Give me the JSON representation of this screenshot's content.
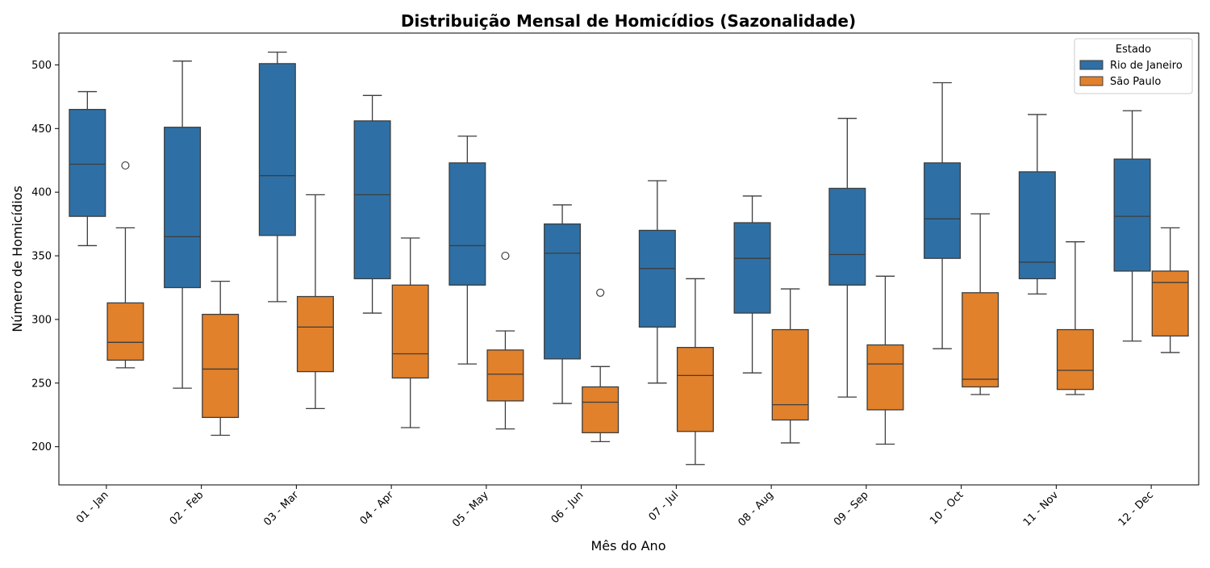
{
  "chart_data": {
    "type": "box",
    "title": "Distribuição Mensal de Homicídios (Sazonalidade)",
    "xlabel": "Mês do Ano",
    "ylabel": "Número de Homicídios",
    "ylim": [
      170,
      525
    ],
    "yticks": [
      200,
      250,
      300,
      350,
      400,
      450,
      500
    ],
    "grid": false,
    "legend": {
      "title": "Estado",
      "placement": "top-right"
    },
    "categories": [
      "01 - Jan",
      "02 - Feb",
      "03 - Mar",
      "04 - Apr",
      "05 - May",
      "06 - Jun",
      "07 - Jul",
      "08 - Aug",
      "09 - Sep",
      "10 - Oct",
      "11 - Nov",
      "12 - Dec"
    ],
    "series": [
      {
        "name": "Rio de Janeiro",
        "color": "#2e70a5",
        "boxes": [
          {
            "whislo": 358,
            "q1": 381,
            "med": 422,
            "q3": 465,
            "whishi": 479,
            "fliers": []
          },
          {
            "whislo": 246,
            "q1": 325,
            "med": 365,
            "q3": 451,
            "whishi": 503,
            "fliers": []
          },
          {
            "whislo": 314,
            "q1": 366,
            "med": 413,
            "q3": 501,
            "whishi": 510,
            "fliers": []
          },
          {
            "whislo": 305,
            "q1": 332,
            "med": 398,
            "q3": 456,
            "whishi": 476,
            "fliers": []
          },
          {
            "whislo": 265,
            "q1": 327,
            "med": 358,
            "q3": 423,
            "whishi": 444,
            "fliers": []
          },
          {
            "whislo": 234,
            "q1": 269,
            "med": 352,
            "q3": 375,
            "whishi": 390,
            "fliers": []
          },
          {
            "whislo": 250,
            "q1": 294,
            "med": 340,
            "q3": 370,
            "whishi": 409,
            "fliers": []
          },
          {
            "whislo": 258,
            "q1": 305,
            "med": 348,
            "q3": 376,
            "whishi": 397,
            "fliers": []
          },
          {
            "whislo": 239,
            "q1": 327,
            "med": 351,
            "q3": 403,
            "whishi": 458,
            "fliers": []
          },
          {
            "whislo": 277,
            "q1": 348,
            "med": 379,
            "q3": 423,
            "whishi": 486,
            "fliers": []
          },
          {
            "whislo": 320,
            "q1": 332,
            "med": 345,
            "q3": 416,
            "whishi": 461,
            "fliers": []
          },
          {
            "whislo": 283,
            "q1": 338,
            "med": 381,
            "q3": 426,
            "whishi": 464,
            "fliers": []
          }
        ]
      },
      {
        "name": "São Paulo",
        "color": "#e1812c",
        "boxes": [
          {
            "whislo": 262,
            "q1": 268,
            "med": 282,
            "q3": 313,
            "whishi": 372,
            "fliers": [
              421
            ]
          },
          {
            "whislo": 209,
            "q1": 223,
            "med": 261,
            "q3": 304,
            "whishi": 330,
            "fliers": []
          },
          {
            "whislo": 230,
            "q1": 259,
            "med": 294,
            "q3": 318,
            "whishi": 398,
            "fliers": []
          },
          {
            "whislo": 215,
            "q1": 254,
            "med": 273,
            "q3": 327,
            "whishi": 364,
            "fliers": []
          },
          {
            "whislo": 214,
            "q1": 236,
            "med": 257,
            "q3": 276,
            "whishi": 291,
            "fliers": [
              350
            ]
          },
          {
            "whislo": 204,
            "q1": 211,
            "med": 235,
            "q3": 247,
            "whishi": 263,
            "fliers": [
              321
            ]
          },
          {
            "whislo": 186,
            "q1": 212,
            "med": 256,
            "q3": 278,
            "whishi": 332,
            "fliers": []
          },
          {
            "whislo": 203,
            "q1": 221,
            "med": 233,
            "q3": 292,
            "whishi": 324,
            "fliers": []
          },
          {
            "whislo": 202,
            "q1": 229,
            "med": 265,
            "q3": 280,
            "whishi": 334,
            "fliers": []
          },
          {
            "whislo": 241,
            "q1": 247,
            "med": 253,
            "q3": 321,
            "whishi": 383,
            "fliers": []
          },
          {
            "whislo": 241,
            "q1": 245,
            "med": 260,
            "q3": 292,
            "whishi": 361,
            "fliers": []
          },
          {
            "whislo": 274,
            "q1": 287,
            "med": 329,
            "q3": 338,
            "whishi": 372,
            "fliers": []
          }
        ]
      }
    ]
  }
}
